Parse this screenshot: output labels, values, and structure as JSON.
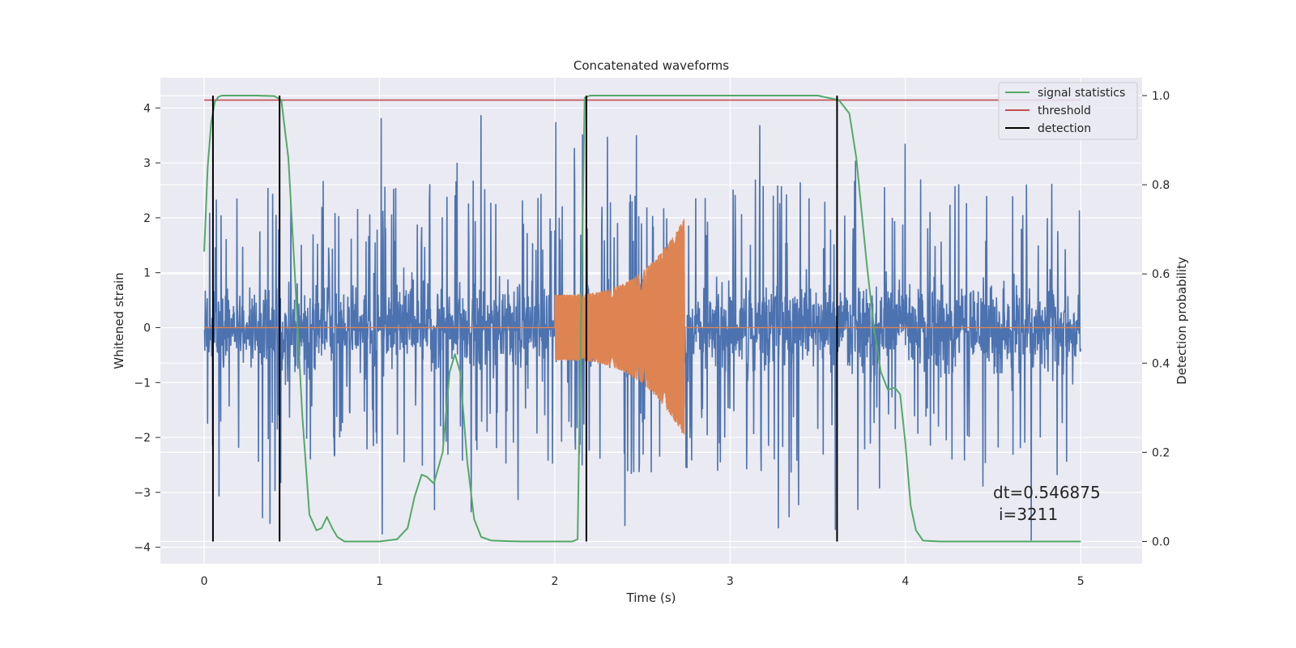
{
  "chart_data": {
    "type": "line",
    "title": "Concatenated waveforms",
    "xlabel": "Time (s)",
    "ylabel_left": "Whitened strain",
    "ylabel_right": "Detection probability",
    "xlim": [
      -0.25,
      5.35
    ],
    "ylim_left": [
      -4.3,
      4.55
    ],
    "ylim_right": [
      -0.05,
      1.04
    ],
    "x_ticks": [
      0,
      1,
      2,
      3,
      4,
      5
    ],
    "y_ticks_left": [
      -4,
      -3,
      -2,
      -1,
      0,
      1,
      2,
      3,
      4
    ],
    "y_ticks_right": [
      0.0,
      0.2,
      0.4,
      0.6,
      0.8,
      1.0
    ],
    "grid": true,
    "legend_position": "top-right",
    "colors": {
      "background": "#eaeaf2",
      "grid": "#ffffff",
      "strain": "#4c72b0",
      "injected_signal": "#dd8452",
      "signal_statistics": "#55a868",
      "threshold": "#c44e52",
      "detection": "#000000"
    },
    "series": [
      {
        "kind": "noise",
        "x_range": [
          0,
          5
        ],
        "base_amplitude": 1.0,
        "peak_range": [
          -3.9,
          3.9
        ]
      },
      {
        "kind": "chirp",
        "x_range": [
          2.0,
          2.74
        ],
        "amplitude_start": 0.6,
        "amplitude_end": 2.0,
        "x_flat": [
          [
            0,
            2.0
          ],
          [
            2.74,
            5
          ]
        ],
        "y_flat": 0
      },
      {
        "name": "signal statistics",
        "axis": "right",
        "x": [
          0,
          0.02,
          0.04,
          0.06,
          0.08,
          0.1,
          0.2,
          0.3,
          0.4,
          0.44,
          0.48,
          0.52,
          0.56,
          0.6,
          0.64,
          0.67,
          0.7,
          0.73,
          0.76,
          0.8,
          1.0,
          1.1,
          1.16,
          1.2,
          1.24,
          1.27,
          1.31,
          1.36,
          1.4,
          1.43,
          1.46,
          1.5,
          1.54,
          1.58,
          1.64,
          1.8,
          2.0,
          2.1,
          2.13,
          2.15,
          2.17,
          2.2,
          3.0,
          3.5,
          3.62,
          3.68,
          3.72,
          3.78,
          3.82,
          3.86,
          3.9,
          3.94,
          3.97,
          4.0,
          4.03,
          4.06,
          4.1,
          4.2,
          4.5,
          5.0
        ],
        "y": [
          0.65,
          0.84,
          0.94,
          0.985,
          0.997,
          1.0,
          1.0,
          1.0,
          0.999,
          0.99,
          0.86,
          0.58,
          0.28,
          0.06,
          0.025,
          0.03,
          0.055,
          0.03,
          0.01,
          0.0,
          0.0,
          0.005,
          0.03,
          0.1,
          0.15,
          0.145,
          0.13,
          0.2,
          0.38,
          0.42,
          0.38,
          0.18,
          0.05,
          0.01,
          0.002,
          0.0,
          0.0,
          0.0,
          0.005,
          0.5,
          0.995,
          1.0,
          1.0,
          1.0,
          0.99,
          0.96,
          0.86,
          0.62,
          0.48,
          0.38,
          0.34,
          0.345,
          0.33,
          0.22,
          0.08,
          0.025,
          0.002,
          0.0,
          0.0,
          0.0
        ]
      },
      {
        "name": "threshold",
        "axis": "right",
        "x": [
          0,
          5
        ],
        "y": [
          0.99,
          0.99
        ]
      },
      {
        "name": "detection",
        "axis": "right",
        "vlines_x": [
          0.05,
          0.43,
          2.18,
          3.61
        ],
        "y_range": [
          0.0,
          1.0
        ]
      }
    ],
    "legend": [
      "signal statistics",
      "threshold",
      "detection"
    ],
    "annotations": [
      "dt=0.546875",
      "i=3211"
    ]
  }
}
